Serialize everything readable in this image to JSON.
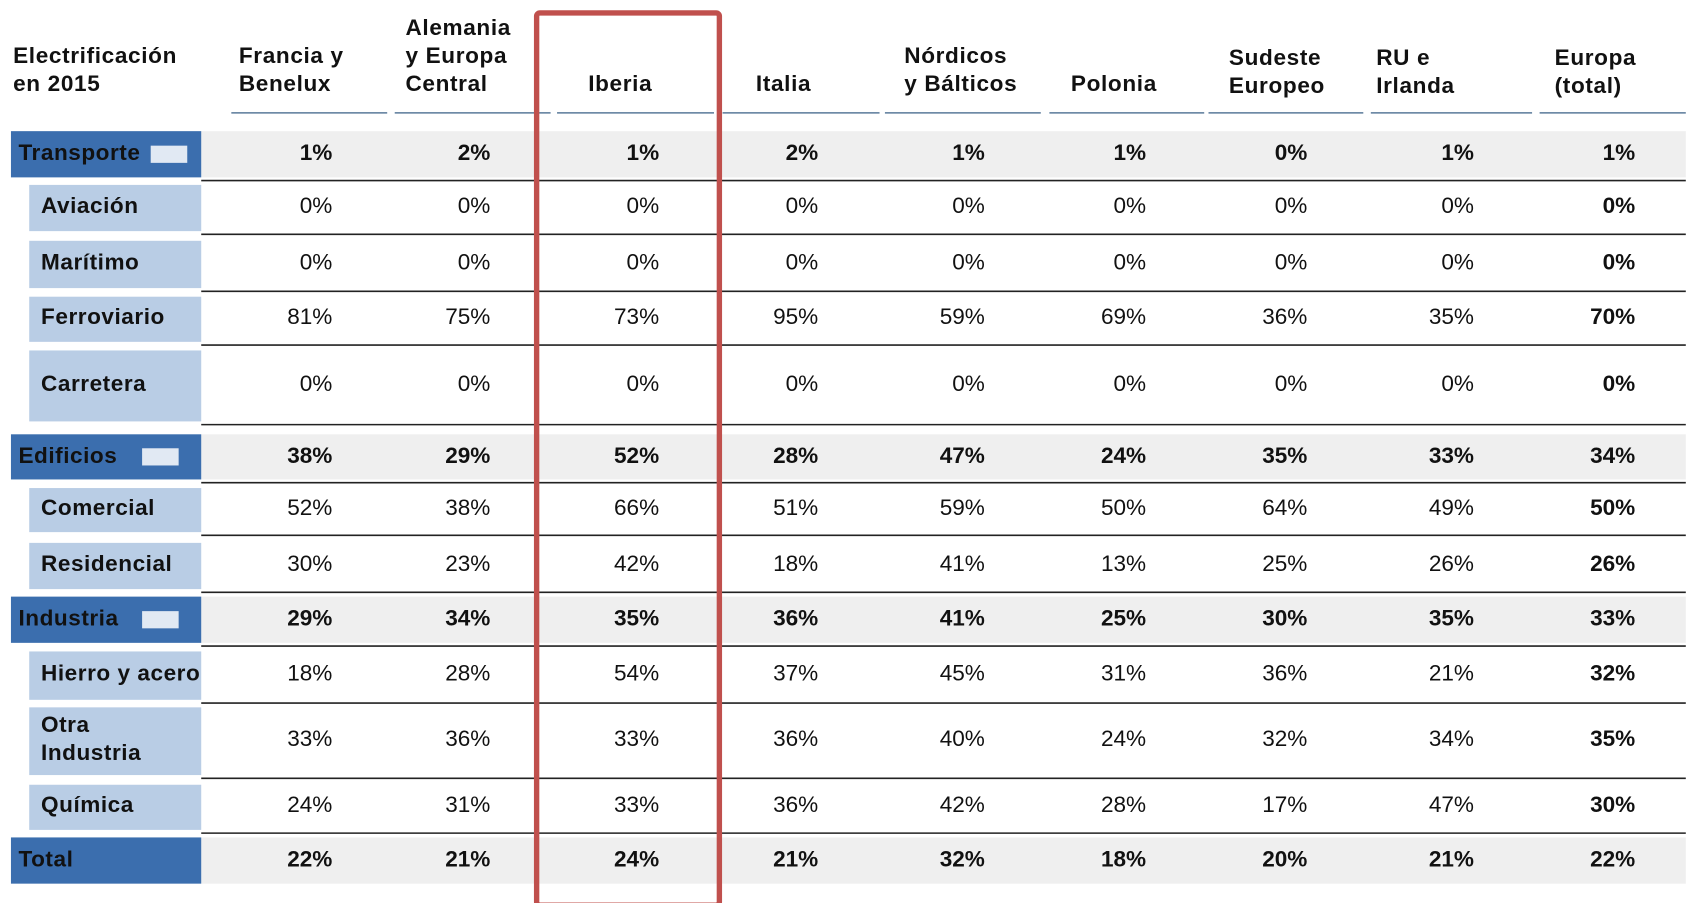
{
  "table": {
    "corner": [
      "Electrificación",
      "en 2015"
    ],
    "columns": [
      [
        "Francia  y",
        "Benelux"
      ],
      [
        "Alemania",
        "y Europa",
        "Central"
      ],
      [
        "Iberia"
      ],
      [
        "Italia"
      ],
      [
        "Nórdicos",
        "y Bálticos"
      ],
      [
        "Polonia"
      ],
      [
        "Sudeste",
        "Europeo"
      ],
      [
        "RU e",
        "Irlanda"
      ],
      [
        "Europa",
        "(total)"
      ]
    ],
    "rows": [
      {
        "kind": "section",
        "label": [
          "Transporte"
        ],
        "values": [
          "1%",
          "2%",
          "1%",
          "2%",
          "1%",
          "1%",
          "0%",
          "1%",
          "1%"
        ]
      },
      {
        "kind": "sub",
        "label": [
          "Aviación"
        ],
        "values": [
          "0%",
          "0%",
          "0%",
          "0%",
          "0%",
          "0%",
          "0%",
          "0%",
          "0%"
        ]
      },
      {
        "kind": "sub",
        "label": [
          "Marítimo"
        ],
        "values": [
          "0%",
          "0%",
          "0%",
          "0%",
          "0%",
          "0%",
          "0%",
          "0%",
          "0%"
        ]
      },
      {
        "kind": "sub",
        "label": [
          "Ferroviario"
        ],
        "values": [
          "81%",
          "75%",
          "73%",
          "95%",
          "59%",
          "69%",
          "36%",
          "35%",
          "70%"
        ]
      },
      {
        "kind": "sub",
        "label": [
          "Carretera"
        ],
        "values": [
          "0%",
          "0%",
          "0%",
          "0%",
          "0%",
          "0%",
          "0%",
          "0%",
          "0%"
        ]
      },
      {
        "kind": "section",
        "label": [
          "Edificios"
        ],
        "values": [
          "38%",
          "29%",
          "52%",
          "28%",
          "47%",
          "24%",
          "35%",
          "33%",
          "34%"
        ]
      },
      {
        "kind": "sub",
        "label": [
          "Comercial"
        ],
        "values": [
          "52%",
          "38%",
          "66%",
          "51%",
          "59%",
          "50%",
          "64%",
          "49%",
          "50%"
        ]
      },
      {
        "kind": "sub",
        "label": [
          "Residencial"
        ],
        "values": [
          "30%",
          "23%",
          "42%",
          "18%",
          "41%",
          "13%",
          "25%",
          "26%",
          "26%"
        ]
      },
      {
        "kind": "section",
        "label": [
          "Industria"
        ],
        "values": [
          "29%",
          "34%",
          "35%",
          "36%",
          "41%",
          "25%",
          "30%",
          "35%",
          "33%"
        ]
      },
      {
        "kind": "sub",
        "label": [
          "Hierro y acero"
        ],
        "values": [
          "18%",
          "28%",
          "54%",
          "37%",
          "45%",
          "31%",
          "36%",
          "21%",
          "32%"
        ]
      },
      {
        "kind": "sub",
        "label": [
          "Otra",
          "Industria"
        ],
        "values": [
          "33%",
          "36%",
          "33%",
          "36%",
          "40%",
          "24%",
          "32%",
          "34%",
          "35%"
        ]
      },
      {
        "kind": "sub",
        "label": [
          "Química"
        ],
        "values": [
          "24%",
          "31%",
          "33%",
          "36%",
          "42%",
          "28%",
          "17%",
          "47%",
          "30%"
        ]
      },
      {
        "kind": "total",
        "label": [
          "Total"
        ],
        "values": [
          "22%",
          "21%",
          "24%",
          "21%",
          "32%",
          "18%",
          "20%",
          "21%",
          "22%"
        ]
      }
    ]
  }
}
